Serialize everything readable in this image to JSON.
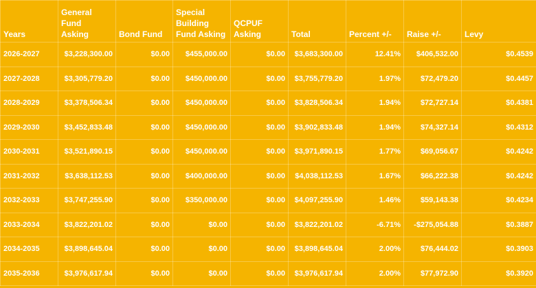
{
  "table": {
    "headers": [
      "Years",
      "General Fund\nAsking",
      "Bond Fund",
      "Special\nBuilding\nFund Asking",
      "QCPUF\nAsking",
      "Total",
      "Percent +/-",
      "Raise +/-",
      "Levy"
    ],
    "rows": [
      [
        "2026-2027",
        "$3,228,300.00",
        "$0.00",
        "$455,000.00",
        "$0.00",
        "$3,683,300.00",
        "12.41%",
        "$406,532.00",
        "$0.4539"
      ],
      [
        "2027-2028",
        "$3,305,779.20",
        "$0.00",
        "$450,000.00",
        "$0.00",
        "$3,755,779.20",
        "1.97%",
        "$72,479.20",
        "$0.4457"
      ],
      [
        "2028-2029",
        "$3,378,506.34",
        "$0.00",
        "$450,000.00",
        "$0.00",
        "$3,828,506.34",
        "1.94%",
        "$72,727.14",
        "$0.4381"
      ],
      [
        "2029-2030",
        "$3,452,833.48",
        "$0.00",
        "$450,000.00",
        "$0.00",
        "$3,902,833.48",
        "1.94%",
        "$74,327.14",
        "$0.4312"
      ],
      [
        "2030-2031",
        "$3,521,890.15",
        "$0.00",
        "$450,000.00",
        "$0.00",
        "$3,971,890.15",
        "1.77%",
        "$69,056.67",
        "$0.4242"
      ],
      [
        "2031-2032",
        "$3,638,112.53",
        "$0.00",
        "$400,000.00",
        "$0.00",
        "$4,038,112.53",
        "1.67%",
        "$66,222.38",
        "$0.4242"
      ],
      [
        "2032-2033",
        "$3,747,255.90",
        "$0.00",
        "$350,000.00",
        "$0.00",
        "$4,097,255.90",
        "1.46%",
        "$59,143.38",
        "$0.4234"
      ],
      [
        "2033-2034",
        "$3,822,201.02",
        "$0.00",
        "$0.00",
        "$0.00",
        "$3,822,201.02",
        "-6.71%",
        "-$275,054.88",
        "$0.3887"
      ],
      [
        "2034-2035",
        "$3,898,645.04",
        "$0.00",
        "$0.00",
        "$0.00",
        "$3,898,645.04",
        "2.00%",
        "$76,444.02",
        "$0.3903"
      ],
      [
        "2035-2036",
        "$3,976,617.94",
        "$0.00",
        "$0.00",
        "$0.00",
        "$3,976,617.94",
        "2.00%",
        "$77,972.90",
        "$0.3920"
      ]
    ]
  }
}
